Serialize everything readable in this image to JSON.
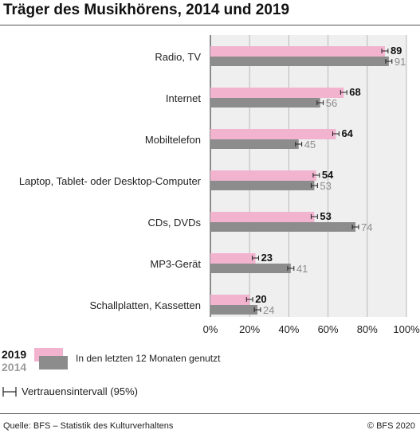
{
  "title": "Träger des Musikhörens, 2014 und 2019",
  "colors": {
    "y2019": "#f2b3cf",
    "y2014": "#8c8c8c",
    "plot_bg": "#efefef",
    "grid": "#b8b8b8"
  },
  "chart_data": {
    "type": "bar",
    "orientation": "horizontal",
    "title": "Träger des Musikhörens, 2014 und 2019",
    "categories": [
      "Radio, TV",
      "Internet",
      "Mobiltelefon",
      "Laptop, Tablet- oder Desktop-Computer",
      "CDs, DVDs",
      "MP3-Gerät",
      "Schallplatten, Kassetten"
    ],
    "series": [
      {
        "name": "2019",
        "values": [
          89,
          68,
          64,
          54,
          53,
          23,
          20
        ]
      },
      {
        "name": "2014",
        "values": [
          91,
          56,
          45,
          53,
          74,
          41,
          24
        ]
      }
    ],
    "xlim": [
      0,
      100
    ],
    "x_ticks": [
      "0%",
      "20%",
      "40%",
      "60%",
      "80%",
      "100%"
    ],
    "grid": true,
    "error_bars": "Vertrauensintervall (95%)"
  },
  "legend": {
    "label_2019": "2019",
    "label_2014": "2014",
    "description": "In den letzten 12 Monaten genutzt",
    "ci_label": "Vertrauensintervall (95%)"
  },
  "footer": {
    "source": "Quelle: BFS – Statistik des Kulturverhaltens",
    "copyright": "© BFS 2020"
  }
}
